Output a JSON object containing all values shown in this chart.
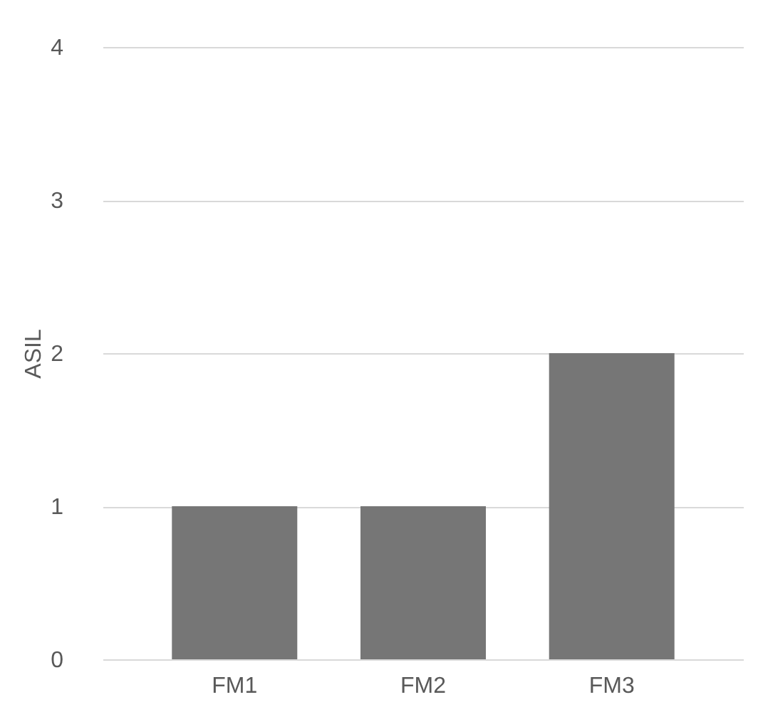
{
  "chart_data": {
    "type": "bar",
    "ylabel": "ASIL",
    "categories": [
      "FM1",
      "FM2",
      "FM3"
    ],
    "values": [
      1,
      1,
      2
    ],
    "color": "#767676",
    "ylim": [
      0,
      4
    ],
    "yticks": [
      0,
      1,
      2,
      3,
      4
    ],
    "grid": "y"
  }
}
